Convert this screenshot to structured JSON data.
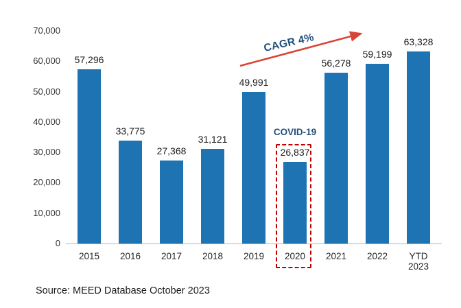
{
  "chart_data": {
    "type": "bar",
    "categories": [
      "2015",
      "2016",
      "2017",
      "2018",
      "2019",
      "2020",
      "2021",
      "2022",
      "YTD 2023"
    ],
    "values": [
      57296,
      33775,
      27368,
      31121,
      49991,
      26837,
      56278,
      59199,
      63328
    ],
    "labels": [
      "57,296",
      "33,775",
      "27,368",
      "31,121",
      "49,991",
      "26,837",
      "56,278",
      "59,199",
      "63,328"
    ],
    "title": "",
    "xlabel": "",
    "ylabel": "",
    "ylim": [
      0,
      70000
    ],
    "ytick_step": 10000,
    "yticks": [
      "0",
      "10,000",
      "20,000",
      "30,000",
      "40,000",
      "50,000",
      "60,000",
      "70,000"
    ],
    "bar_color": "#1E73B3",
    "grid": false,
    "legend": false,
    "annotations": {
      "cagr": {
        "text": "CAGR 4%",
        "text_color": "#1F4E79",
        "arrow_color": "#D94436"
      },
      "covid": {
        "text": "COVID-19",
        "category": "2020",
        "box_color": "#C00000",
        "text_color": "#1F4E79"
      }
    }
  },
  "source": {
    "text": "Source: MEED Database October 2023"
  }
}
